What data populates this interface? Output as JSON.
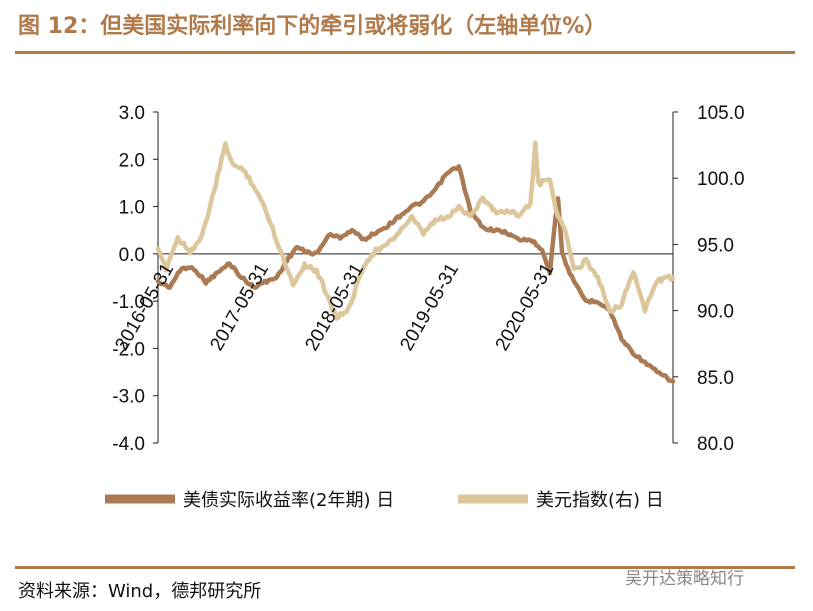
{
  "header": {
    "title": "图 12：但美国实际利率向下的牵引或将弱化（左轴单位%）"
  },
  "footer": {
    "source": "资料来源：Wind，德邦研究所",
    "watermark": "吴开达策略知行"
  },
  "chart_data": {
    "type": "line",
    "title": "但美国实际利率向下的牵引或将弱化（左轴单位%）",
    "x_range": [
      "2016-03-31",
      "2021-08-31"
    ],
    "x_ticks": [
      "2016-05-31",
      "2017-05-31",
      "2018-05-31",
      "2019-05-31",
      "2020-05-31"
    ],
    "y_left": {
      "min": -4.0,
      "max": 3.0,
      "ticks": [
        "3.0",
        "2.0",
        "1.0",
        "0.0",
        "-1.0",
        "-2.0",
        "-3.0",
        "-4.0"
      ]
    },
    "y_right": {
      "min": 80.0,
      "max": 105.0,
      "ticks": [
        "105.0",
        "100.0",
        "95.0",
        "90.0",
        "85.0",
        "80.0"
      ]
    },
    "series": [
      {
        "name": "美债实际收益率(2年期) 日",
        "axis": "left",
        "color": "#a97a54",
        "points": [
          [
            "2016-03-31",
            -0.6
          ],
          [
            "2016-05-15",
            -0.7
          ],
          [
            "2016-07-01",
            -0.3
          ],
          [
            "2016-08-15",
            -0.3
          ],
          [
            "2016-10-01",
            -0.6
          ],
          [
            "2016-11-15",
            -0.4
          ],
          [
            "2016-12-31",
            -0.2
          ],
          [
            "2017-02-15",
            -0.5
          ],
          [
            "2017-04-01",
            -0.7
          ],
          [
            "2017-05-15",
            -0.6
          ],
          [
            "2017-06-30",
            -0.5
          ],
          [
            "2017-08-01",
            -0.2
          ],
          [
            "2017-09-15",
            0.15
          ],
          [
            "2017-10-15",
            0.05
          ],
          [
            "2017-12-01",
            0.0
          ],
          [
            "2018-01-15",
            0.4
          ],
          [
            "2018-03-01",
            0.35
          ],
          [
            "2018-04-15",
            0.5
          ],
          [
            "2018-06-01",
            0.3
          ],
          [
            "2018-07-15",
            0.45
          ],
          [
            "2018-09-01",
            0.6
          ],
          [
            "2018-10-15",
            0.8
          ],
          [
            "2018-12-01",
            1.0
          ],
          [
            "2019-01-15",
            1.1
          ],
          [
            "2019-03-01",
            1.35
          ],
          [
            "2019-04-15",
            1.7
          ],
          [
            "2019-05-31",
            1.85
          ],
          [
            "2019-07-15",
            0.9
          ],
          [
            "2019-09-01",
            0.55
          ],
          [
            "2019-10-15",
            0.5
          ],
          [
            "2019-12-01",
            0.45
          ],
          [
            "2020-01-15",
            0.3
          ],
          [
            "2020-03-01",
            0.3
          ],
          [
            "2020-04-15",
            0.1
          ],
          [
            "2020-05-15",
            -0.4
          ],
          [
            "2020-05-31",
            0.5
          ],
          [
            "2020-06-15",
            1.2
          ],
          [
            "2020-07-01",
            0.0
          ],
          [
            "2020-08-15",
            -0.6
          ],
          [
            "2020-10-01",
            -1.0
          ],
          [
            "2020-11-15",
            -1.0
          ],
          [
            "2020-12-31",
            -1.2
          ],
          [
            "2021-02-15",
            -1.8
          ],
          [
            "2021-04-01",
            -2.1
          ],
          [
            "2021-05-15",
            -2.3
          ],
          [
            "2021-07-01",
            -2.5
          ],
          [
            "2021-08-31",
            -2.7
          ]
        ]
      },
      {
        "name": "美元指数(右) 日",
        "axis": "right",
        "color": "#dcc79c",
        "points": [
          [
            "2016-03-31",
            94.5
          ],
          [
            "2016-05-01",
            93.2
          ],
          [
            "2016-06-15",
            95.5
          ],
          [
            "2016-08-01",
            94.5
          ],
          [
            "2016-09-15",
            95.5
          ],
          [
            "2016-11-01",
            99.0
          ],
          [
            "2016-12-15",
            102.5
          ],
          [
            "2017-01-15",
            101.0
          ],
          [
            "2017-03-01",
            100.5
          ],
          [
            "2017-04-15",
            99.0
          ],
          [
            "2017-05-31",
            97.0
          ],
          [
            "2017-07-15",
            94.5
          ],
          [
            "2017-09-01",
            92.0
          ],
          [
            "2017-10-15",
            93.5
          ],
          [
            "2017-11-30",
            93.0
          ],
          [
            "2018-01-15",
            91.0
          ],
          [
            "2018-02-15",
            89.5
          ],
          [
            "2018-04-01",
            90.0
          ],
          [
            "2018-05-31",
            93.5
          ],
          [
            "2018-07-15",
            94.5
          ],
          [
            "2018-09-01",
            95.0
          ],
          [
            "2018-10-15",
            96.0
          ],
          [
            "2018-12-01",
            97.0
          ],
          [
            "2019-01-15",
            95.8
          ],
          [
            "2019-03-01",
            96.8
          ],
          [
            "2019-04-15",
            97.0
          ],
          [
            "2019-05-31",
            97.8
          ],
          [
            "2019-07-15",
            97.2
          ],
          [
            "2019-09-01",
            98.5
          ],
          [
            "2019-10-15",
            97.5
          ],
          [
            "2019-12-01",
            97.5
          ],
          [
            "2020-01-15",
            97.3
          ],
          [
            "2020-03-01",
            98.0
          ],
          [
            "2020-03-20",
            102.5
          ],
          [
            "2020-04-01",
            99.5
          ],
          [
            "2020-05-15",
            100.0
          ],
          [
            "2020-06-15",
            97.0
          ],
          [
            "2020-07-15",
            96.0
          ],
          [
            "2020-08-15",
            93.0
          ],
          [
            "2020-10-01",
            93.8
          ],
          [
            "2020-11-15",
            92.5
          ],
          [
            "2020-12-31",
            90.0
          ],
          [
            "2021-02-15",
            90.5
          ],
          [
            "2021-04-01",
            93.0
          ],
          [
            "2021-05-15",
            90.0
          ],
          [
            "2021-07-01",
            92.3
          ],
          [
            "2021-08-31",
            92.5
          ]
        ]
      }
    ],
    "legend": {
      "position": "bottom"
    }
  }
}
